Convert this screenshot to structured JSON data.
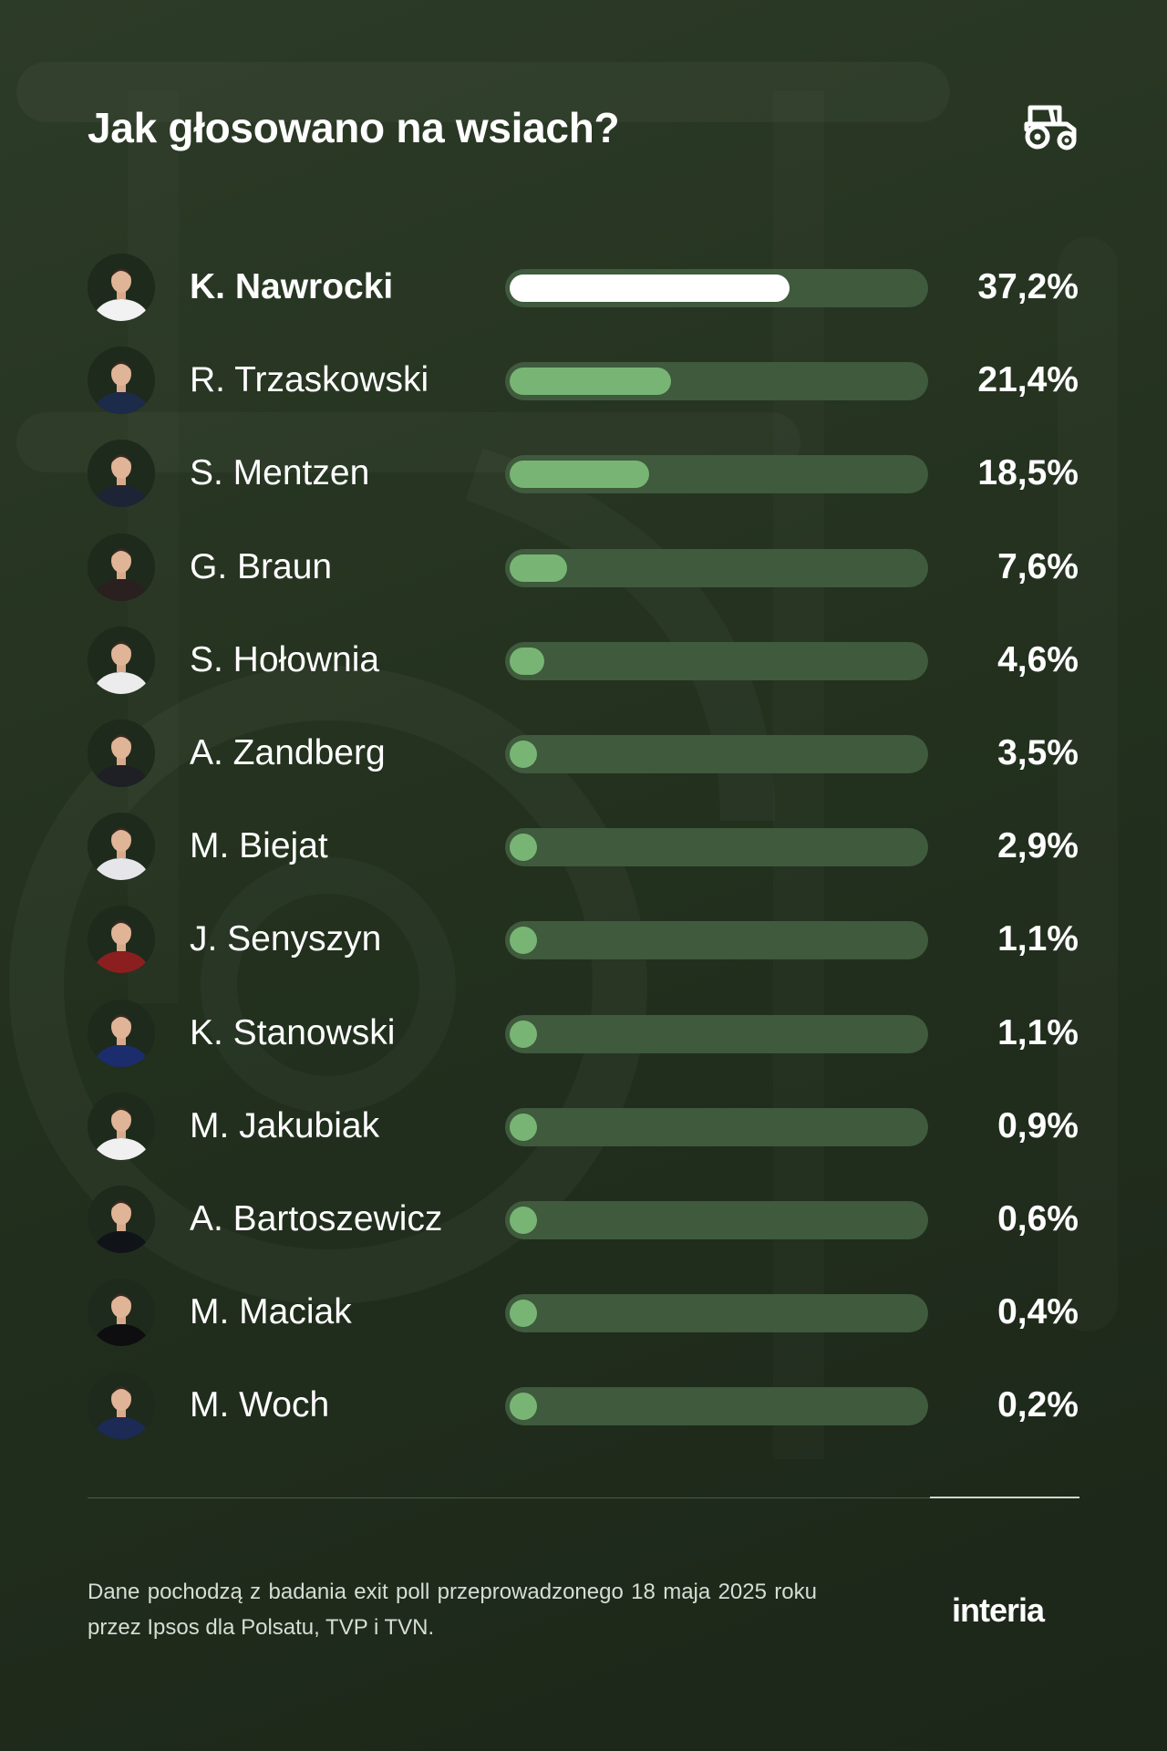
{
  "header": {
    "title": "Jak głosowano na wsiach?",
    "icon": "tractor-icon"
  },
  "chart_data": {
    "type": "bar",
    "orientation": "horizontal",
    "title": "Jak głosowano na wsiach?",
    "unit": "%",
    "xlim": [
      0,
      100
    ],
    "grid": false,
    "categories": [
      "K. Nawrocki",
      "R. Trzaskowski",
      "S. Mentzen",
      "G. Braun",
      "S. Hołownia",
      "A. Zandberg",
      "M. Biejat",
      "J. Senyszyn",
      "K. Stanowski",
      "M. Jakubiak",
      "A. Bartoszewicz",
      "M. Maciak",
      "M. Woch"
    ],
    "values": [
      37.2,
      21.4,
      18.5,
      7.6,
      4.6,
      3.5,
      2.9,
      1.1,
      1.1,
      0.9,
      0.6,
      0.4,
      0.2
    ],
    "labels": [
      "37,2%",
      "21,4%",
      "18,5%",
      "7,6%",
      "4,6%",
      "3,5%",
      "2,9%",
      "1,1%",
      "1,1%",
      "0,9%",
      "0,6%",
      "0,4%",
      "0,2%"
    ],
    "leader_index": 0,
    "colors": {
      "leader_bar": "#ffffff",
      "bar": "#78b574",
      "track": "#3f5a3d"
    }
  },
  "footer": {
    "note": "Dane pochodzą z badania exit poll przeprowadzonego 18 maja 2025 roku przez Ipsos dla Polsatu, TVP i TVN.",
    "logo": "interia"
  }
}
